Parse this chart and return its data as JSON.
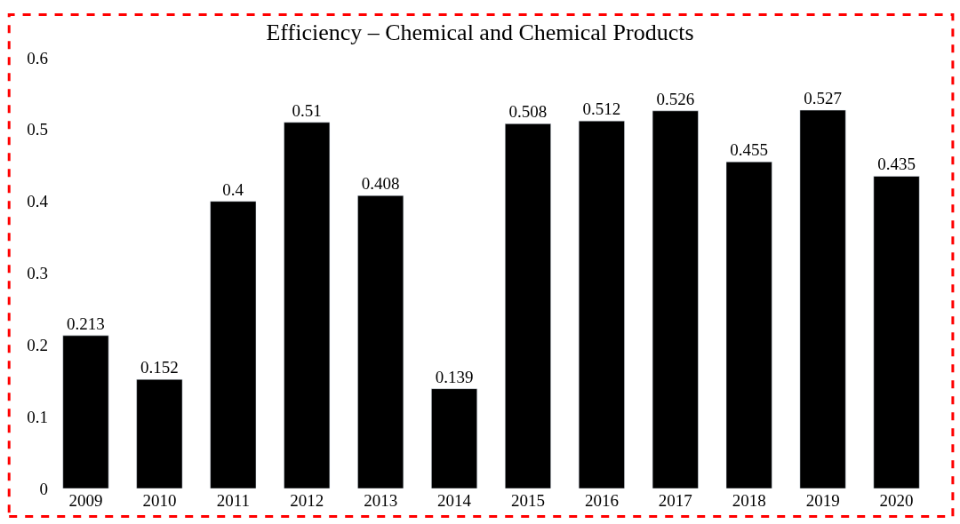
{
  "chart_data": {
    "type": "bar",
    "title": "Efficiency – Chemical and Chemical Products",
    "categories": [
      "2009",
      "2010",
      "2011",
      "2012",
      "2013",
      "2014",
      "2015",
      "2016",
      "2017",
      "2018",
      "2019",
      "2020"
    ],
    "values": [
      0.213,
      0.152,
      0.4,
      0.51,
      0.408,
      0.139,
      0.508,
      0.512,
      0.526,
      0.455,
      0.527,
      0.435
    ],
    "color": "#000000",
    "ylim": [
      0,
      0.6
    ],
    "yticks": [
      0,
      0.1,
      0.2,
      0.3,
      0.4,
      0.5,
      0.6
    ],
    "data_labels": true
  }
}
